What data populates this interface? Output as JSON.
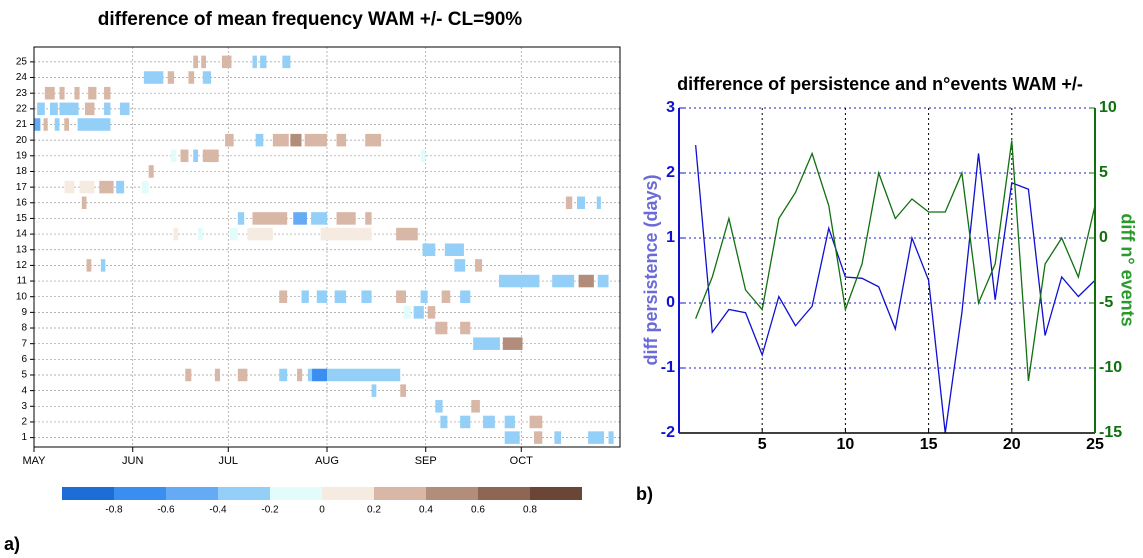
{
  "chart_data": [
    {
      "type": "heatmap",
      "title": "difference of mean frequency WAM +/- CL=90%",
      "panel_label": "a)",
      "xlim": [
        0,
        184
      ],
      "xticks": [
        {
          "value": 0,
          "label": "MAY"
        },
        {
          "value": 31,
          "label": "JUN"
        },
        {
          "value": 61,
          "label": "JUL"
        },
        {
          "value": 92,
          "label": "AUG"
        },
        {
          "value": 123,
          "label": "SEP"
        },
        {
          "value": 153,
          "label": "OCT"
        }
      ],
      "ylim": [
        0.4,
        25.95
      ],
      "yticks": [
        1,
        2,
        3,
        4,
        5,
        6,
        7,
        8,
        9,
        10,
        11,
        12,
        13,
        14,
        15,
        16,
        17,
        18,
        19,
        20,
        21,
        22,
        23,
        24,
        25
      ],
      "grid": true,
      "colorbar_ticks": [
        -0.8,
        -0.6,
        -0.4,
        -0.2,
        0,
        0.2,
        0.4,
        0.6,
        0.8
      ],
      "colorbar_colors": [
        "#1d6dd8",
        "#3a8ef0",
        "#64aaf4",
        "#94cff8",
        "#e2fbfb",
        "#f6ebe0",
        "#d9b7a6",
        "#b38d7b",
        "#8d6654",
        "#6b4535"
      ],
      "cells": [
        [
          25,
          50,
          51.5,
          0.3
        ],
        [
          25,
          52.5,
          54,
          0.3
        ],
        [
          25,
          59,
          62,
          0.3
        ],
        [
          25,
          68.6,
          70,
          -0.3
        ],
        [
          25,
          71,
          73,
          -0.3
        ],
        [
          25,
          78,
          80.5,
          -0.3
        ],
        [
          24,
          34.5,
          40.6,
          -0.3
        ],
        [
          24,
          42,
          44,
          0.3
        ],
        [
          24,
          48.5,
          50.3,
          0.3
        ],
        [
          24,
          53,
          55.6,
          -0.3
        ],
        [
          23,
          3.4,
          6.5,
          0.3
        ],
        [
          23,
          8,
          9.6,
          0.3
        ],
        [
          23,
          12.7,
          14.3,
          0.3
        ],
        [
          23,
          17,
          19.6,
          0.3
        ],
        [
          23,
          22,
          24,
          0.3
        ],
        [
          22,
          1,
          3.4,
          -0.3
        ],
        [
          22,
          5,
          7.5,
          -0.3
        ],
        [
          22,
          8,
          14,
          -0.3
        ],
        [
          22,
          16,
          19,
          0.3
        ],
        [
          22,
          22,
          24,
          -0.3
        ],
        [
          22,
          27,
          30,
          -0.3
        ],
        [
          21,
          0,
          2,
          -0.5
        ],
        [
          21,
          3,
          4.3,
          0.3
        ],
        [
          21,
          6.5,
          8,
          -0.3
        ],
        [
          21,
          9.5,
          11,
          0.3
        ],
        [
          21,
          13.7,
          24,
          -0.3
        ],
        [
          20,
          60,
          62.7,
          0.3
        ],
        [
          20,
          69.6,
          72,
          -0.3
        ],
        [
          20,
          75,
          80,
          0.3
        ],
        [
          20,
          80.5,
          84,
          0.4
        ],
        [
          20,
          85,
          92,
          0.3
        ],
        [
          20,
          95,
          98,
          0.3
        ],
        [
          20,
          104,
          109,
          0.3
        ],
        [
          19,
          43,
          44.7,
          -0.1
        ],
        [
          19,
          46,
          48.5,
          0.3
        ],
        [
          19,
          50,
          51.5,
          -0.3
        ],
        [
          19,
          53,
          58,
          0.3
        ],
        [
          19,
          121.4,
          123,
          -0.1
        ],
        [
          18,
          36,
          37.6,
          0.3
        ],
        [
          17,
          9.6,
          12.7,
          0.1
        ],
        [
          17,
          14.3,
          19,
          0.15
        ],
        [
          17,
          20.5,
          25,
          0.3
        ],
        [
          17,
          25.8,
          28.3,
          -0.4
        ],
        [
          17,
          33.8,
          36,
          -0.1
        ],
        [
          16,
          15,
          16.5,
          0.3
        ],
        [
          16,
          167,
          169,
          0.3
        ],
        [
          16,
          170.5,
          173,
          -0.3
        ],
        [
          16,
          176.7,
          178,
          -0.3
        ],
        [
          15,
          64,
          66,
          -0.3
        ],
        [
          15,
          68.6,
          79.5,
          0.3
        ],
        [
          15,
          81.4,
          85.7,
          -0.5
        ],
        [
          15,
          87,
          92,
          -0.3
        ],
        [
          15,
          95,
          101,
          0.3
        ],
        [
          15,
          104,
          106,
          0.3
        ],
        [
          14,
          43.8,
          45.3,
          0.1
        ],
        [
          14,
          51.5,
          53,
          -0.1
        ],
        [
          14,
          61.5,
          64,
          -0.1
        ],
        [
          14,
          67,
          75,
          0.1
        ],
        [
          14,
          90,
          106,
          0.15
        ],
        [
          14,
          113.7,
          120.5,
          0.3
        ],
        [
          13,
          122,
          126,
          -0.3
        ],
        [
          13,
          129,
          135,
          -0.3
        ],
        [
          12,
          16.5,
          18,
          0.3
        ],
        [
          12,
          21,
          22.4,
          -0.3
        ],
        [
          12,
          132,
          135.4,
          -0.3
        ],
        [
          12,
          138.5,
          140.7,
          0.3
        ],
        [
          11,
          146,
          158.7,
          -0.3
        ],
        [
          11,
          162.7,
          169.6,
          -0.3
        ],
        [
          11,
          171,
          175.8,
          0.5
        ],
        [
          11,
          177,
          180.4,
          -0.3
        ],
        [
          10,
          77,
          79.5,
          0.3
        ],
        [
          10,
          84,
          86.3,
          -0.3
        ],
        [
          10,
          88.8,
          92,
          -0.3
        ],
        [
          10,
          94.4,
          98,
          -0.3
        ],
        [
          10,
          102.8,
          106,
          -0.3
        ],
        [
          10,
          113.7,
          116.8,
          0.3
        ],
        [
          10,
          121.4,
          123.6,
          -0.3
        ],
        [
          10,
          128,
          130.7,
          0.3
        ],
        [
          10,
          133.8,
          137,
          -0.3
        ],
        [
          9,
          116,
          118.3,
          -0.1
        ],
        [
          9,
          119.2,
          122.4,
          -0.3
        ],
        [
          9,
          123.6,
          126,
          0.3
        ],
        [
          8,
          126,
          129.8,
          0.3
        ],
        [
          8,
          133.8,
          137,
          0.3
        ],
        [
          7,
          137.9,
          146.3,
          -0.3
        ],
        [
          7,
          147.2,
          153.4,
          0.5
        ],
        [
          5,
          47.5,
          49.4,
          0.3
        ],
        [
          5,
          56.8,
          58.4,
          0.3
        ],
        [
          5,
          64,
          67,
          0.3
        ],
        [
          5,
          77,
          79.5,
          -0.3
        ],
        [
          5,
          82.6,
          84.2,
          0.3
        ],
        [
          5,
          86,
          87.3,
          -0.3
        ],
        [
          5,
          87.3,
          92,
          -0.7
        ],
        [
          5,
          92,
          115,
          -0.3
        ],
        [
          4,
          106,
          107.5,
          -0.3
        ],
        [
          4,
          115,
          116.8,
          0.3
        ],
        [
          3,
          126,
          128.3,
          -0.3
        ],
        [
          3,
          137.3,
          140,
          0.3
        ],
        [
          2,
          127.6,
          129.8,
          -0.3
        ],
        [
          2,
          133.8,
          137,
          -0.3
        ],
        [
          2,
          141,
          144.7,
          -0.3
        ],
        [
          2,
          147.8,
          151,
          -0.3
        ],
        [
          2,
          155.6,
          159.6,
          0.3
        ],
        [
          1,
          147.8,
          152.5,
          -0.3
        ],
        [
          1,
          157,
          159.6,
          0.3
        ],
        [
          1,
          163.4,
          165.5,
          -0.3
        ],
        [
          1,
          174,
          179,
          -0.3
        ],
        [
          1,
          180.4,
          182,
          -0.3
        ]
      ]
    },
    {
      "type": "line",
      "title": "difference of persistence and n°events WAM +/-",
      "panel_label": "b)",
      "y_label": "diff persistence (days)",
      "y2_label": "diff n° events",
      "x": [
        1,
        2,
        3,
        4,
        5,
        6,
        7,
        8,
        9,
        10,
        11,
        12,
        13,
        14,
        15,
        16,
        17,
        18,
        19,
        20,
        21,
        22,
        23,
        24,
        25
      ],
      "xlim": [
        0,
        25
      ],
      "xticks": [
        5,
        10,
        15,
        20,
        25
      ],
      "ylim": [
        -2,
        3
      ],
      "yticks": [
        -2,
        -1,
        0,
        1,
        2,
        3
      ],
      "y2lim": [
        -15,
        10
      ],
      "y2ticks": [
        -15,
        -10,
        -5,
        0,
        5,
        10
      ],
      "grid": true,
      "series": [
        {
          "name": "diff persistence",
          "color": "#1010d0",
          "values": [
            2.43,
            -0.45,
            -0.1,
            -0.15,
            -0.8,
            0.1,
            -0.35,
            -0.05,
            1.15,
            0.4,
            0.38,
            0.25,
            -0.4,
            1.0,
            0.35,
            -2.0,
            -0.15,
            2.3,
            0.05,
            1.85,
            1.75,
            -0.5,
            0.4,
            0.1,
            0.35
          ]
        },
        {
          "name": "diff n events",
          "color": "#107010",
          "axis": "y2",
          "values": [
            -6.2,
            -3,
            1.5,
            -4,
            -5.5,
            1.5,
            3.5,
            6.5,
            2.5,
            -5.5,
            -2,
            5,
            1.5,
            3,
            2,
            2,
            5,
            -5,
            -2,
            7.5,
            -11,
            -2,
            0,
            -3,
            2.5
          ]
        }
      ]
    }
  ]
}
